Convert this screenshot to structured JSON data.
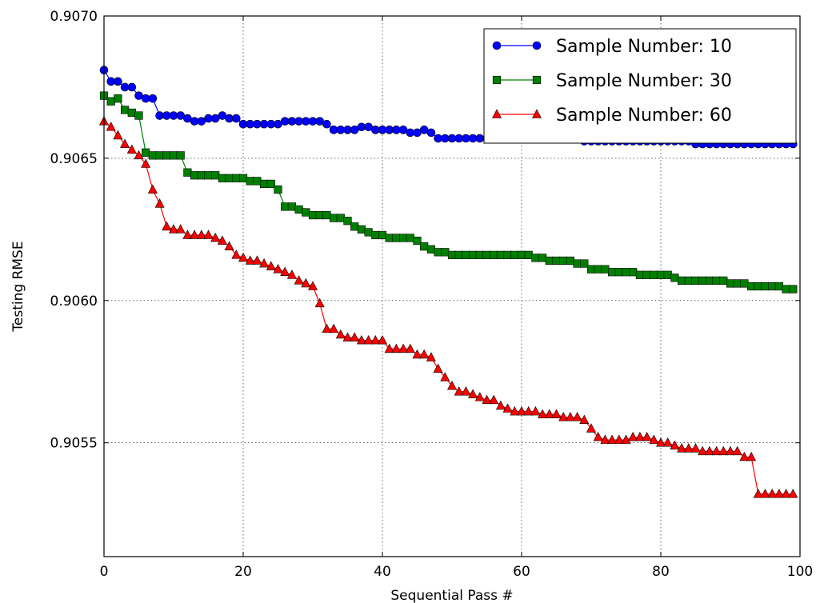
{
  "chart_data": {
    "type": "line",
    "title": "",
    "xlabel": "Sequential Pass #",
    "ylabel": "Testing RMSE",
    "xlim": [
      0,
      100
    ],
    "ylim": [
      0.9051,
      0.907
    ],
    "xticks": [
      0,
      20,
      40,
      60,
      80,
      100
    ],
    "xtick_labels": [
      "0",
      "20",
      "40",
      "60",
      "80",
      "100"
    ],
    "yticks": [
      0.9055,
      0.906,
      0.9065,
      0.907
    ],
    "ytick_labels": [
      "0.9055",
      "0.9060",
      "0.9065",
      "0.9070"
    ],
    "grid": true,
    "legend_position": "top-right",
    "series": [
      {
        "name": "Sample Number: 10",
        "color": "#0000ff",
        "marker": "circle",
        "x": [
          0,
          1,
          2,
          3,
          4,
          5,
          6,
          7,
          8,
          9,
          10,
          11,
          12,
          13,
          14,
          15,
          16,
          17,
          18,
          19,
          20,
          21,
          22,
          23,
          24,
          25,
          26,
          27,
          28,
          29,
          30,
          31,
          32,
          33,
          34,
          35,
          36,
          37,
          38,
          39,
          40,
          41,
          42,
          43,
          44,
          45,
          46,
          47,
          48,
          49,
          50,
          51,
          52,
          53,
          54,
          55,
          56,
          57,
          58,
          59,
          60,
          61,
          62,
          63,
          64,
          65,
          66,
          67,
          68,
          69,
          70,
          71,
          72,
          73,
          74,
          75,
          76,
          77,
          78,
          79,
          80,
          81,
          82,
          83,
          84,
          85,
          86,
          87,
          88,
          89,
          90,
          91,
          92,
          93,
          94,
          95,
          96,
          97,
          98,
          99
        ],
        "values": [
          0.90681,
          0.90677,
          0.90677,
          0.90675,
          0.90675,
          0.90672,
          0.90671,
          0.90671,
          0.90665,
          0.90665,
          0.90665,
          0.90665,
          0.90664,
          0.90663,
          0.90663,
          0.90664,
          0.90664,
          0.90665,
          0.90664,
          0.90664,
          0.90662,
          0.90662,
          0.90662,
          0.90662,
          0.90662,
          0.90662,
          0.90663,
          0.90663,
          0.90663,
          0.90663,
          0.90663,
          0.90663,
          0.90662,
          0.9066,
          0.9066,
          0.9066,
          0.9066,
          0.90661,
          0.90661,
          0.9066,
          0.9066,
          0.9066,
          0.9066,
          0.9066,
          0.90659,
          0.90659,
          0.9066,
          0.90659,
          0.90657,
          0.90657,
          0.90657,
          0.90657,
          0.90657,
          0.90657,
          0.90657,
          0.90657,
          0.90657,
          0.90657,
          0.90657,
          0.90657,
          0.90657,
          0.90657,
          0.90657,
          0.90657,
          0.90657,
          0.90657,
          0.90657,
          0.90657,
          0.90657,
          0.90656,
          0.90656,
          0.90656,
          0.90656,
          0.90656,
          0.90656,
          0.90656,
          0.90656,
          0.90656,
          0.90656,
          0.90656,
          0.90656,
          0.90656,
          0.90656,
          0.90656,
          0.90656,
          0.90655,
          0.90655,
          0.90655,
          0.90655,
          0.90655,
          0.90655,
          0.90655,
          0.90655,
          0.90655,
          0.90655,
          0.90655,
          0.90655,
          0.90655,
          0.90655,
          0.90655
        ]
      },
      {
        "name": "Sample Number: 30",
        "color": "#008000",
        "marker": "square",
        "x": [
          0,
          1,
          2,
          3,
          4,
          5,
          6,
          7,
          8,
          9,
          10,
          11,
          12,
          13,
          14,
          15,
          16,
          17,
          18,
          19,
          20,
          21,
          22,
          23,
          24,
          25,
          26,
          27,
          28,
          29,
          30,
          31,
          32,
          33,
          34,
          35,
          36,
          37,
          38,
          39,
          40,
          41,
          42,
          43,
          44,
          45,
          46,
          47,
          48,
          49,
          50,
          51,
          52,
          53,
          54,
          55,
          56,
          57,
          58,
          59,
          60,
          61,
          62,
          63,
          64,
          65,
          66,
          67,
          68,
          69,
          70,
          71,
          72,
          73,
          74,
          75,
          76,
          77,
          78,
          79,
          80,
          81,
          82,
          83,
          84,
          85,
          86,
          87,
          88,
          89,
          90,
          91,
          92,
          93,
          94,
          95,
          96,
          97,
          98,
          99
        ],
        "values": [
          0.90672,
          0.9067,
          0.90671,
          0.90667,
          0.90666,
          0.90665,
          0.90652,
          0.90651,
          0.90651,
          0.90651,
          0.90651,
          0.90651,
          0.90645,
          0.90644,
          0.90644,
          0.90644,
          0.90644,
          0.90643,
          0.90643,
          0.90643,
          0.90643,
          0.90642,
          0.90642,
          0.90641,
          0.90641,
          0.90639,
          0.90633,
          0.90633,
          0.90632,
          0.90631,
          0.9063,
          0.9063,
          0.9063,
          0.90629,
          0.90629,
          0.90628,
          0.90626,
          0.90625,
          0.90624,
          0.90623,
          0.90623,
          0.90622,
          0.90622,
          0.90622,
          0.90622,
          0.90621,
          0.90619,
          0.90618,
          0.90617,
          0.90617,
          0.90616,
          0.90616,
          0.90616,
          0.90616,
          0.90616,
          0.90616,
          0.90616,
          0.90616,
          0.90616,
          0.90616,
          0.90616,
          0.90616,
          0.90615,
          0.90615,
          0.90614,
          0.90614,
          0.90614,
          0.90614,
          0.90613,
          0.90613,
          0.90611,
          0.90611,
          0.90611,
          0.9061,
          0.9061,
          0.9061,
          0.9061,
          0.90609,
          0.90609,
          0.90609,
          0.90609,
          0.90609,
          0.90608,
          0.90607,
          0.90607,
          0.90607,
          0.90607,
          0.90607,
          0.90607,
          0.90607,
          0.90606,
          0.90606,
          0.90606,
          0.90605,
          0.90605,
          0.90605,
          0.90605,
          0.90605,
          0.90604,
          0.90604
        ]
      },
      {
        "name": "Sample Number: 60",
        "color": "#ff0000",
        "marker": "triangle",
        "x": [
          0,
          1,
          2,
          3,
          4,
          5,
          6,
          7,
          8,
          9,
          10,
          11,
          12,
          13,
          14,
          15,
          16,
          17,
          18,
          19,
          20,
          21,
          22,
          23,
          24,
          25,
          26,
          27,
          28,
          29,
          30,
          31,
          32,
          33,
          34,
          35,
          36,
          37,
          38,
          39,
          40,
          41,
          42,
          43,
          44,
          45,
          46,
          47,
          48,
          49,
          50,
          51,
          52,
          53,
          54,
          55,
          56,
          57,
          58,
          59,
          60,
          61,
          62,
          63,
          64,
          65,
          66,
          67,
          68,
          69,
          70,
          71,
          72,
          73,
          74,
          75,
          76,
          77,
          78,
          79,
          80,
          81,
          82,
          83,
          84,
          85,
          86,
          87,
          88,
          89,
          90,
          91,
          92,
          93,
          94,
          95,
          96,
          97,
          98,
          99
        ],
        "values": [
          0.90663,
          0.90661,
          0.90658,
          0.90655,
          0.90653,
          0.90651,
          0.90648,
          0.90639,
          0.90634,
          0.90626,
          0.90625,
          0.90625,
          0.90623,
          0.90623,
          0.90623,
          0.90623,
          0.90622,
          0.90621,
          0.90619,
          0.90616,
          0.90615,
          0.90614,
          0.90614,
          0.90613,
          0.90612,
          0.90611,
          0.9061,
          0.90609,
          0.90607,
          0.90606,
          0.90605,
          0.90599,
          0.9059,
          0.9059,
          0.90588,
          0.90587,
          0.90587,
          0.90586,
          0.90586,
          0.90586,
          0.90586,
          0.90583,
          0.90583,
          0.90583,
          0.90583,
          0.90581,
          0.90581,
          0.9058,
          0.90576,
          0.90573,
          0.9057,
          0.90568,
          0.90568,
          0.90567,
          0.90566,
          0.90565,
          0.90565,
          0.90563,
          0.90562,
          0.90561,
          0.90561,
          0.90561,
          0.90561,
          0.9056,
          0.9056,
          0.9056,
          0.90559,
          0.90559,
          0.90559,
          0.90558,
          0.90555,
          0.90552,
          0.90551,
          0.90551,
          0.90551,
          0.90551,
          0.90552,
          0.90552,
          0.90552,
          0.90551,
          0.9055,
          0.9055,
          0.90549,
          0.90548,
          0.90548,
          0.90548,
          0.90547,
          0.90547,
          0.90547,
          0.90547,
          0.90547,
          0.90547,
          0.90545,
          0.90545,
          0.90532,
          0.90532,
          0.90532,
          0.90532,
          0.90532,
          0.90532
        ]
      }
    ]
  }
}
